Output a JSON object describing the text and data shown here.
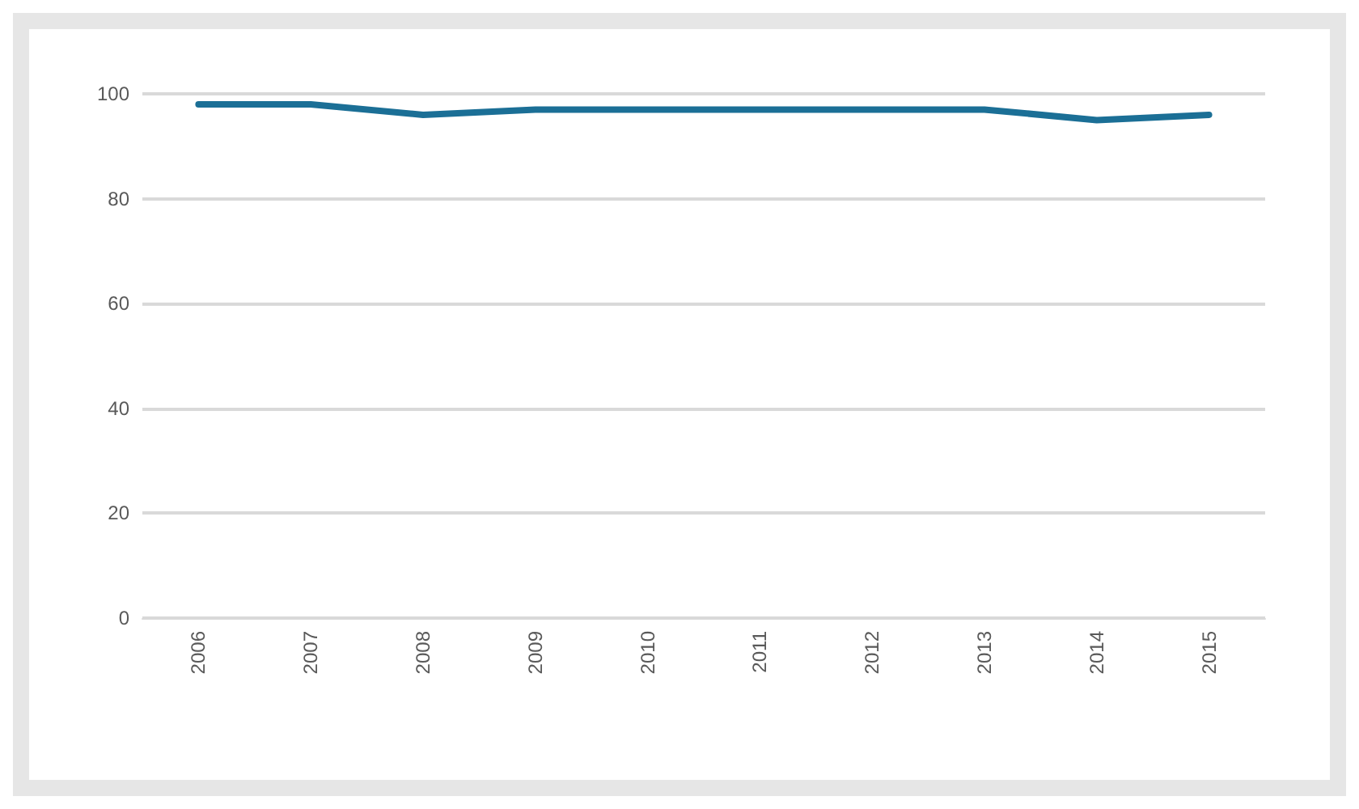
{
  "chart_data": {
    "type": "line",
    "categories": [
      "2006",
      "2007",
      "2008",
      "2009",
      "2010",
      "2011",
      "2012",
      "2013",
      "2014",
      "2015"
    ],
    "series": [
      {
        "color": "#1b6f96",
        "values": [
          98,
          98,
          96,
          97,
          97,
          97,
          97,
          97,
          95,
          96
        ]
      }
    ],
    "ylim": [
      0,
      100
    ],
    "yticks": [
      0,
      20,
      40,
      60,
      80,
      100
    ],
    "grid": "y",
    "marker": "none",
    "line_style": "solid"
  }
}
